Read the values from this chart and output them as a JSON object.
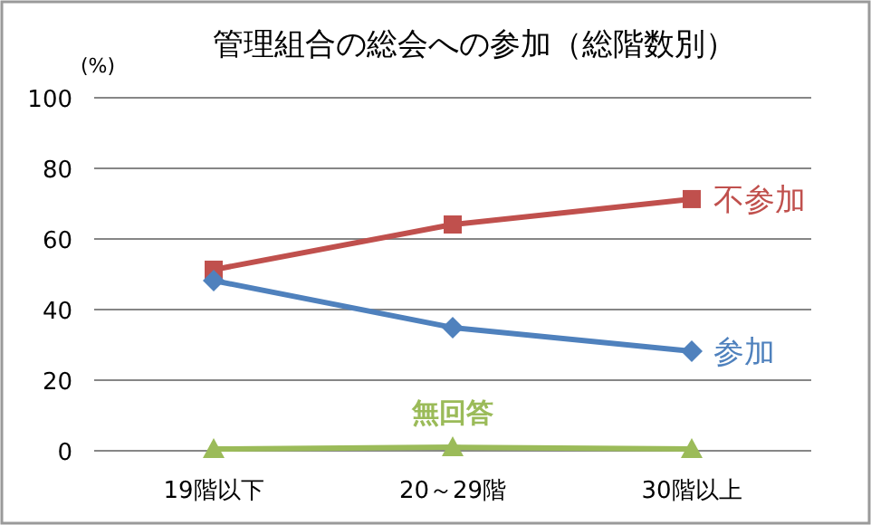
{
  "chart_data": {
    "type": "line",
    "title": "管理組合の総会への参加（総階数別）",
    "ylabel": "(%)",
    "categories": [
      "19階以下",
      "20～29階",
      "30階以上"
    ],
    "series": [
      {
        "name": "不参加",
        "color": "#c0504d",
        "marker": "square",
        "values": [
          51.3,
          64.1,
          71.3
        ]
      },
      {
        "name": "参加",
        "color": "#4f81bd",
        "marker": "diamond",
        "values": [
          48.2,
          34.9,
          28.2
        ]
      },
      {
        "name": "無回答",
        "color": "#9bbb59",
        "marker": "triangle",
        "values": [
          0.5,
          1.0,
          0.5
        ]
      }
    ],
    "ylim": [
      0,
      100
    ],
    "yticks": [
      0,
      20,
      40,
      60,
      80,
      100
    ],
    "grid": "y"
  }
}
